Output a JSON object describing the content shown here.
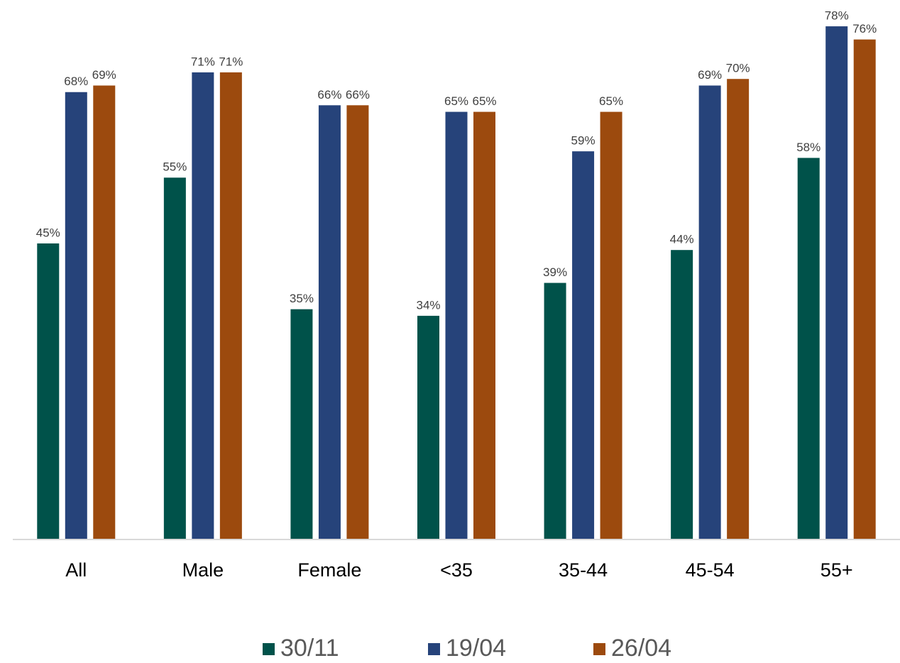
{
  "chart_data": {
    "type": "bar",
    "categories": [
      "All",
      "Male",
      "Female",
      "<35",
      "35-44",
      "45-54",
      "55+"
    ],
    "series": [
      {
        "name": "30/11",
        "color": "#00524a",
        "values": [
          45,
          55,
          35,
          34,
          39,
          44,
          58
        ],
        "value_labels": [
          "45%",
          "55%",
          "35%",
          "34%",
          "39%",
          "44%",
          "58%"
        ]
      },
      {
        "name": "19/04",
        "color": "#26437a",
        "values": [
          68,
          71,
          66,
          65,
          59,
          69,
          78
        ],
        "value_labels": [
          "68%",
          "71%",
          "66%",
          "65%",
          "59%",
          "69%",
          "78%"
        ]
      },
      {
        "name": "26/04",
        "color": "#9c4a0e",
        "values": [
          69,
          71,
          66,
          65,
          65,
          70,
          76
        ],
        "value_labels": [
          "69%",
          "71%",
          "66%",
          "65%",
          "65%",
          "70%",
          "76%"
        ]
      }
    ],
    "ylim": [
      0,
      82
    ],
    "legend": "bottom"
  }
}
